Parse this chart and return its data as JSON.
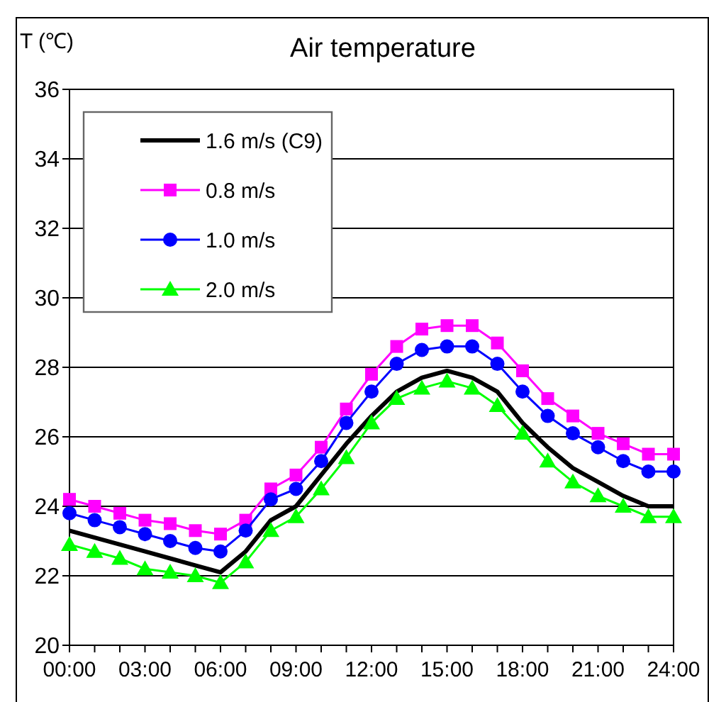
{
  "chart_data": {
    "type": "line",
    "title": "Air temperature",
    "ylabel": "T (℃)",
    "x": [
      0,
      1,
      2,
      3,
      4,
      5,
      6,
      7,
      8,
      9,
      10,
      11,
      12,
      13,
      14,
      15,
      16,
      17,
      18,
      19,
      20,
      21,
      22,
      23,
      24
    ],
    "series": [
      {
        "name": "1.6 m/s (C9)",
        "color": "#000000",
        "marker": "none",
        "values": [
          23.3,
          23.1,
          22.9,
          22.7,
          22.5,
          22.3,
          22.1,
          22.7,
          23.6,
          24.0,
          24.9,
          25.8,
          26.6,
          27.3,
          27.7,
          27.9,
          27.7,
          27.3,
          26.4,
          25.7,
          25.1,
          24.7,
          24.3,
          24.0,
          24.0
        ]
      },
      {
        "name": "0.8 m/s",
        "color": "#ff00ff",
        "marker": "square",
        "values": [
          24.2,
          24.0,
          23.8,
          23.6,
          23.5,
          23.3,
          23.2,
          23.6,
          24.5,
          24.9,
          25.7,
          26.8,
          27.8,
          28.6,
          29.1,
          29.2,
          29.2,
          28.7,
          27.9,
          27.1,
          26.6,
          26.1,
          25.8,
          25.5,
          25.5
        ]
      },
      {
        "name": "1.0 m/s",
        "color": "#0000ff",
        "marker": "circle",
        "values": [
          23.8,
          23.6,
          23.4,
          23.2,
          23.0,
          22.8,
          22.7,
          23.3,
          24.2,
          24.5,
          25.3,
          26.4,
          27.3,
          28.1,
          28.5,
          28.6,
          28.6,
          28.1,
          27.3,
          26.6,
          26.1,
          25.7,
          25.3,
          25.0,
          25.0
        ]
      },
      {
        "name": "2.0 m/s",
        "color": "#00ff00",
        "marker": "triangle",
        "values": [
          22.9,
          22.7,
          22.5,
          22.2,
          22.1,
          22.0,
          21.8,
          22.4,
          23.3,
          23.7,
          24.5,
          25.4,
          26.4,
          27.1,
          27.4,
          27.6,
          27.4,
          26.9,
          26.1,
          25.3,
          24.7,
          24.3,
          24.0,
          23.7,
          23.7
        ]
      }
    ],
    "xlim": [
      0,
      24
    ],
    "xticks": [
      {
        "value": 0,
        "label": "00:00"
      },
      {
        "value": 1,
        "label": null
      },
      {
        "value": 2,
        "label": null
      },
      {
        "value": 3,
        "label": "03:00"
      },
      {
        "value": 4,
        "label": null
      },
      {
        "value": 5,
        "label": null
      },
      {
        "value": 6,
        "label": "06:00"
      },
      {
        "value": 7,
        "label": null
      },
      {
        "value": 8,
        "label": null
      },
      {
        "value": 9,
        "label": "09:00"
      },
      {
        "value": 10,
        "label": null
      },
      {
        "value": 11,
        "label": null
      },
      {
        "value": 12,
        "label": "12:00"
      },
      {
        "value": 13,
        "label": null
      },
      {
        "value": 14,
        "label": null
      },
      {
        "value": 15,
        "label": "15:00"
      },
      {
        "value": 16,
        "label": null
      },
      {
        "value": 17,
        "label": null
      },
      {
        "value": 18,
        "label": "18:00"
      },
      {
        "value": 19,
        "label": null
      },
      {
        "value": 20,
        "label": null
      },
      {
        "value": 21,
        "label": "21:00"
      },
      {
        "value": 22,
        "label": null
      },
      {
        "value": 23,
        "label": null
      },
      {
        "value": 24,
        "label": "24:00"
      }
    ],
    "ylim": [
      20,
      36
    ],
    "yticks": [
      20,
      22,
      24,
      26,
      28,
      30,
      32,
      34,
      36
    ],
    "grid": "y",
    "legend": "top left"
  }
}
